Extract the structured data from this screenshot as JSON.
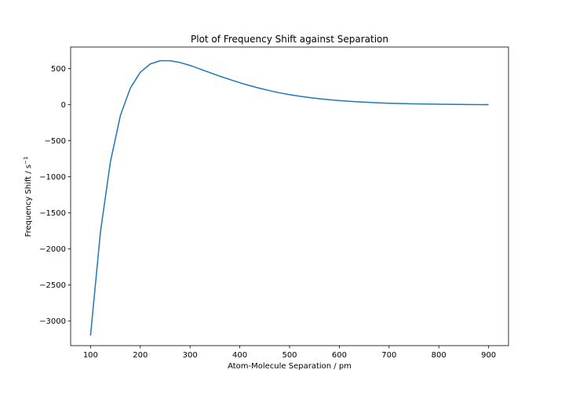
{
  "chart_data": {
    "type": "line",
    "title": "Plot of Frequency Shift against Separation",
    "xlabel": "Atom-Molecule Separation / pm",
    "ylabel": "Frequency Shift / s",
    "ylabel_superscript": "−1",
    "xlim": [
      60,
      940
    ],
    "ylim": [
      -3340,
      800
    ],
    "xticks": [
      {
        "value": 100,
        "label": "100"
      },
      {
        "value": 200,
        "label": "200"
      },
      {
        "value": 300,
        "label": "300"
      },
      {
        "value": 400,
        "label": "400"
      },
      {
        "value": 500,
        "label": "500"
      },
      {
        "value": 600,
        "label": "600"
      },
      {
        "value": 700,
        "label": "700"
      },
      {
        "value": 800,
        "label": "800"
      },
      {
        "value": 900,
        "label": "900"
      }
    ],
    "yticks": [
      {
        "value": 500,
        "label": "500"
      },
      {
        "value": 0,
        "label": "0"
      },
      {
        "value": -500,
        "label": "−500"
      },
      {
        "value": -1000,
        "label": "−1000"
      },
      {
        "value": -1500,
        "label": "−1500"
      },
      {
        "value": -2000,
        "label": "−2000"
      },
      {
        "value": -2500,
        "label": "−2500"
      },
      {
        "value": -3000,
        "label": "−3000"
      }
    ],
    "grid": false,
    "series": [
      {
        "color": "#1f77b4",
        "x": [
          100,
          120,
          140,
          160,
          180,
          200,
          220,
          240,
          260,
          280,
          300,
          320,
          340,
          360,
          380,
          400,
          420,
          440,
          460,
          480,
          500,
          520,
          540,
          560,
          580,
          600,
          620,
          640,
          660,
          680,
          700,
          720,
          740,
          760,
          780,
          800,
          820,
          840,
          860,
          880,
          900
        ],
        "y": [
          -3200,
          -1760,
          -790,
          -150,
          230,
          450,
          565,
          610,
          610,
          585,
          545,
          495,
          445,
          395,
          350,
          305,
          265,
          228,
          195,
          165,
          140,
          118,
          99,
          83,
          69,
          57,
          47,
          39,
          32,
          26,
          21,
          17,
          14,
          11,
          9,
          7,
          5,
          4,
          3,
          2,
          1
        ]
      }
    ]
  }
}
